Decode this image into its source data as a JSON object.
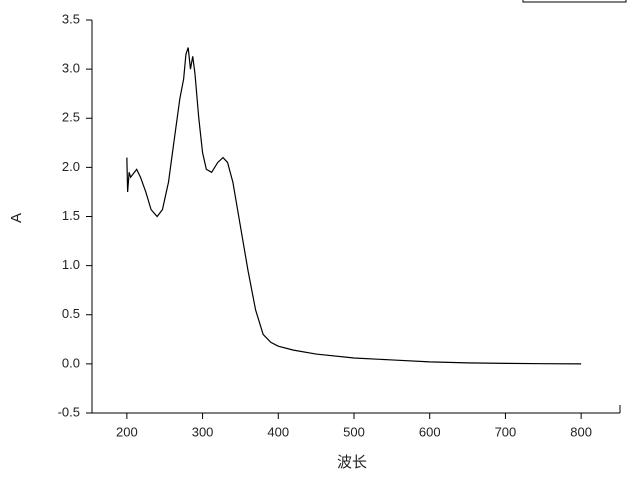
{
  "chart_data": {
    "type": "line",
    "xlabel": "波长",
    "ylabel": "A",
    "xlim": [
      150,
      850
    ],
    "ylim": [
      -0.5,
      3.5
    ],
    "xticks": [
      200,
      300,
      400,
      500,
      600,
      700,
      800
    ],
    "yticks": [
      -0.5,
      {
        "value": 0,
        "label": "0.0"
      },
      0.5,
      {
        "value": 1,
        "label": "1.0"
      },
      1.5,
      {
        "value": 2,
        "label": "2.0"
      },
      2.5,
      {
        "value": 3,
        "label": "3.0"
      },
      3.5
    ],
    "series": [
      {
        "color": "#000000",
        "x": [
          200,
          201,
          203,
          205,
          210,
          213,
          218,
          225,
          232,
          240,
          247,
          255,
          262,
          270,
          275,
          278,
          281,
          284,
          287,
          290,
          295,
          300,
          305,
          312,
          320,
          327,
          333,
          340,
          350,
          360,
          370,
          380,
          390,
          400,
          420,
          450,
          500,
          550,
          600,
          650,
          700,
          750,
          800
        ],
        "values": [
          2.1,
          1.75,
          1.95,
          1.9,
          1.95,
          1.98,
          1.9,
          1.75,
          1.57,
          1.5,
          1.57,
          1.85,
          2.25,
          2.7,
          2.9,
          3.15,
          3.22,
          3.0,
          3.13,
          2.95,
          2.5,
          2.15,
          1.98,
          1.95,
          2.05,
          2.1,
          2.05,
          1.85,
          1.4,
          0.95,
          0.55,
          0.3,
          0.22,
          0.18,
          0.14,
          0.1,
          0.06,
          0.04,
          0.02,
          0.01,
          0.005,
          0.002,
          0
        ]
      }
    ]
  }
}
